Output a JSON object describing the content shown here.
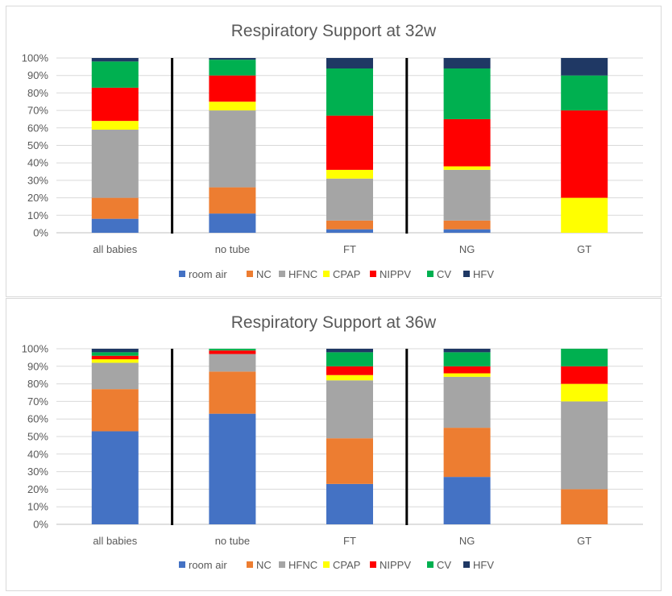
{
  "colors": {
    "room air": "#4472c4",
    "NC": "#ed7d31",
    "HFNC": "#a5a5a5",
    "CPAP": "#ffff00",
    "NIPPV": "#ff0000",
    "CV": "#00b050",
    "HFV": "#1f3864"
  },
  "chart_data": [
    {
      "type": "bar",
      "stacked": true,
      "title": "Respiratory Support at 32w",
      "categories": [
        "all babies",
        "no tube",
        "FT",
        "NG",
        "GT"
      ],
      "y_ticks": [
        "0%",
        "10%",
        "20%",
        "30%",
        "40%",
        "50%",
        "60%",
        "70%",
        "80%",
        "90%",
        "100%"
      ],
      "ylim": [
        0,
        100
      ],
      "grid": true,
      "legend_position": "bottom",
      "separators_after": [
        "all babies",
        "FT"
      ],
      "series": [
        {
          "name": "room air",
          "values": [
            8,
            11,
            2,
            2,
            0
          ]
        },
        {
          "name": "NC",
          "values": [
            12,
            15,
            5,
            5,
            0
          ]
        },
        {
          "name": "HFNC",
          "values": [
            39,
            44,
            24,
            29,
            0
          ]
        },
        {
          "name": "CPAP",
          "values": [
            5,
            5,
            5,
            2,
            20
          ]
        },
        {
          "name": "NIPPV",
          "values": [
            19,
            15,
            31,
            27,
            50
          ]
        },
        {
          "name": "CV",
          "values": [
            15,
            9,
            27,
            29,
            20
          ]
        },
        {
          "name": "HFV",
          "values": [
            2,
            1,
            6,
            6,
            10
          ]
        }
      ]
    },
    {
      "type": "bar",
      "stacked": true,
      "title": "Respiratory Support at 36w",
      "categories": [
        "all babies",
        "no tube",
        "FT",
        "NG",
        "GT"
      ],
      "y_ticks": [
        "0%",
        "10%",
        "20%",
        "30%",
        "40%",
        "50%",
        "60%",
        "70%",
        "80%",
        "90%",
        "100%"
      ],
      "ylim": [
        0,
        100
      ],
      "grid": true,
      "legend_position": "bottom",
      "separators_after": [
        "all babies",
        "FT"
      ],
      "series": [
        {
          "name": "room air",
          "values": [
            53,
            63,
            23,
            27,
            0
          ]
        },
        {
          "name": "NC",
          "values": [
            24,
            24,
            26,
            28,
            20
          ]
        },
        {
          "name": "HFNC",
          "values": [
            15,
            10,
            33,
            29,
            50
          ]
        },
        {
          "name": "CPAP",
          "values": [
            2,
            0,
            3,
            2,
            10
          ]
        },
        {
          "name": "NIPPV",
          "values": [
            2,
            2,
            5,
            4,
            10
          ]
        },
        {
          "name": "CV",
          "values": [
            2,
            1,
            8,
            8,
            10
          ]
        },
        {
          "name": "HFV",
          "values": [
            2,
            0,
            2,
            2,
            0
          ]
        }
      ]
    }
  ]
}
